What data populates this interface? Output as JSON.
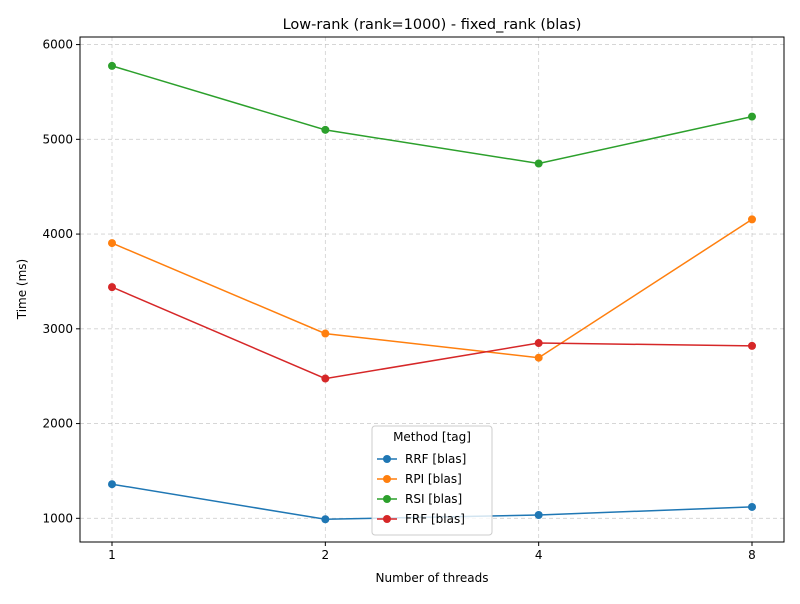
{
  "chart_data": {
    "type": "line",
    "title": "Low-rank (rank=1000) - fixed_rank (blas)",
    "xlabel": "Number of threads",
    "ylabel": "Time (ms)",
    "categories": [
      "1",
      "2",
      "4",
      "8"
    ],
    "ylim": [
      750,
      6080
    ],
    "yticks": [
      1000,
      2000,
      3000,
      4000,
      5000,
      6000
    ],
    "grid": true,
    "legend_title": "Method [tag]",
    "legend_position": "bottom-center",
    "series": [
      {
        "name": "RRF [blas]",
        "color": "#1f77b4",
        "values": [
          1360,
          990,
          1035,
          1120
        ]
      },
      {
        "name": "RPI [blas]",
        "color": "#ff7f0e",
        "values": [
          3905,
          2950,
          2695,
          4155
        ]
      },
      {
        "name": "RSI [blas]",
        "color": "#2ca02c",
        "values": [
          5775,
          5100,
          4745,
          5240
        ]
      },
      {
        "name": "FRF [blas]",
        "color": "#d62728",
        "values": [
          3440,
          2475,
          2850,
          2820
        ]
      }
    ]
  }
}
